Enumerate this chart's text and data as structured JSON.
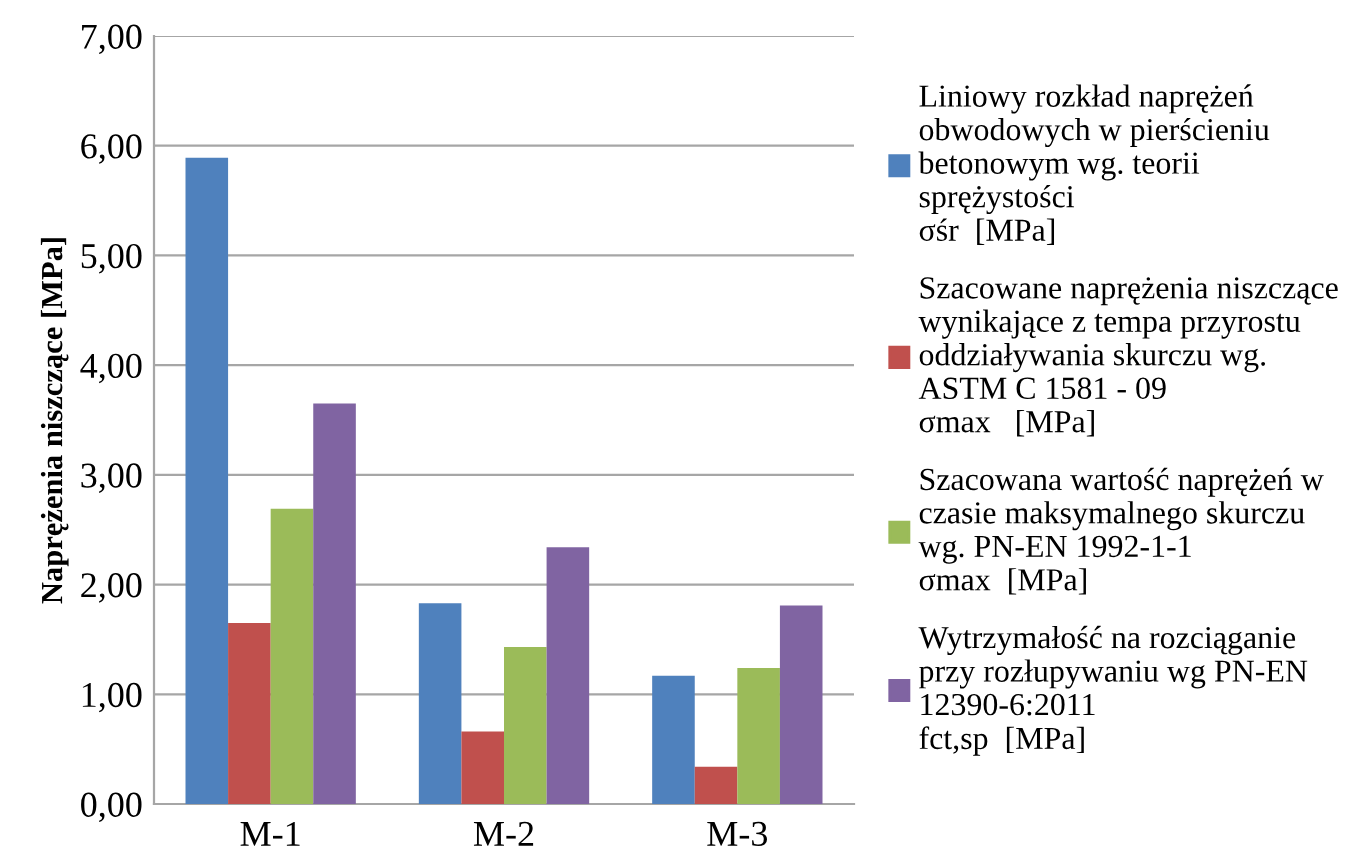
{
  "chart_data": {
    "type": "bar",
    "ylabel": "Naprężenia niszczące [MPa]",
    "categories": [
      "M-1",
      "M-2",
      "M-3"
    ],
    "series": [
      {
        "name": "Liniowy rozkład naprężeń\nobwodowych w pierścieniu\nbetonowym wg. teorii\nsprężystości\nσśr  [MPa]",
        "color": "#4f81bd",
        "values": [
          5.89,
          1.83,
          1.17
        ]
      },
      {
        "name": "Szacowane naprężenia niszczące\nwynikające z tempa przyrostu\noddziaływania skurczu wg.\nASTM C 1581 - 09\nσmax   [MPa]",
        "color": "#c0504d",
        "values": [
          1.65,
          0.66,
          0.34
        ]
      },
      {
        "name": "Szacowana wartość naprężeń w\nczasie maksymalnego skurczu\nwg. PN-EN 1992-1-1\nσmax  [MPa]",
        "color": "#9bbb59",
        "values": [
          2.69,
          1.43,
          1.24
        ]
      },
      {
        "name": "Wytrzymałość na rozciąganie\nprzy rozłupywaniu wg PN-EN\n12390-6:2011\nfct,sp  [MPa]",
        "color": "#8064a2",
        "values": [
          3.65,
          2.34,
          1.81
        ]
      }
    ],
    "ylim": [
      0,
      7
    ],
    "yticks": [
      {
        "value": 0,
        "label": "0,00"
      },
      {
        "value": 1,
        "label": "1,00"
      },
      {
        "value": 2,
        "label": "2,00"
      },
      {
        "value": 3,
        "label": "3,00"
      },
      {
        "value": 4,
        "label": "4,00"
      },
      {
        "value": 5,
        "label": "5,00"
      },
      {
        "value": 6,
        "label": "6,00"
      },
      {
        "value": 7,
        "label": "7,00"
      }
    ],
    "grid": "y",
    "legend": "right"
  }
}
